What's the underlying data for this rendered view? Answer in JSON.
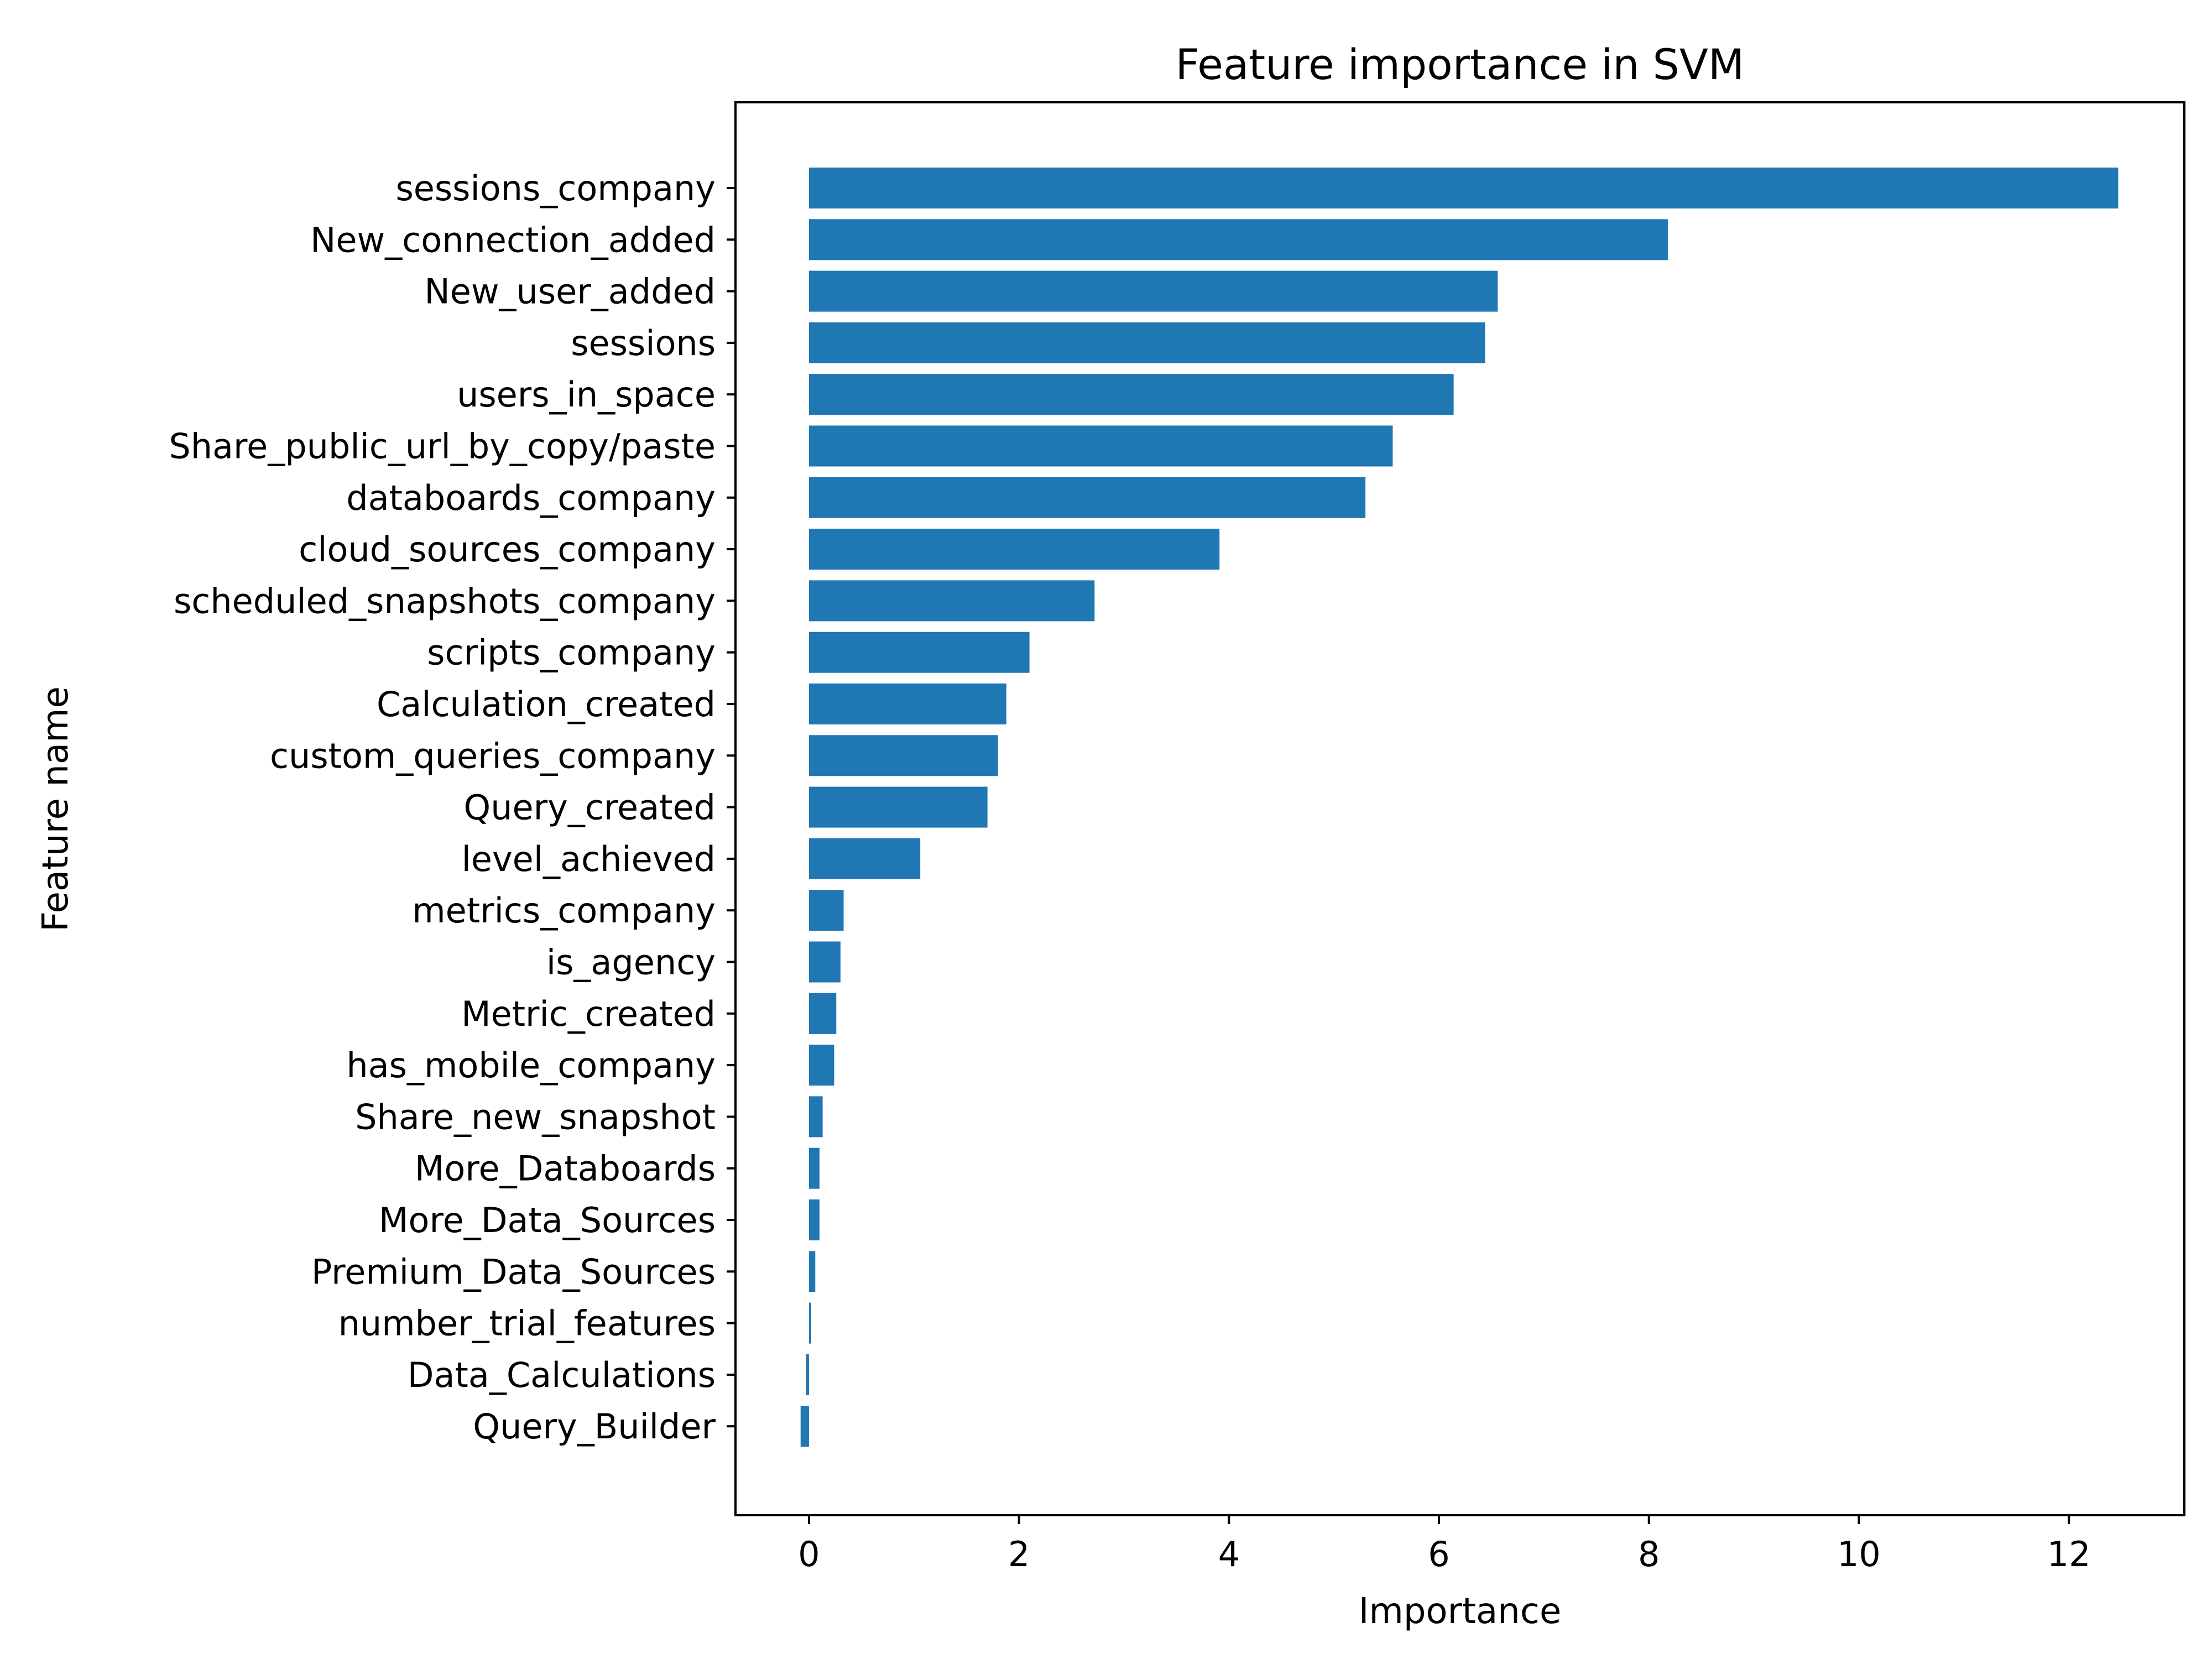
{
  "chart_data": {
    "type": "bar",
    "orientation": "horizontal",
    "title": "Feature importance in SVM",
    "xlabel": "Importance",
    "ylabel": "Feature name",
    "xlim": [
      -0.7,
      13.1
    ],
    "xticks": [
      0,
      2,
      4,
      6,
      8,
      10,
      12
    ],
    "grid": false,
    "bar_color": "#1f77b4",
    "categories": [
      "sessions_company",
      "New_connection_added",
      "New_user_added",
      "sessions",
      "users_in_space",
      "Share_public_url_by_copy/paste",
      "databoards_company",
      "cloud_sources_company",
      "scheduled_snapshots_company",
      "scripts_company",
      "Calculation_created",
      "custom_queries_company",
      "Query_created",
      "level_achieved",
      "metrics_company",
      "is_agency",
      "Metric_created",
      "has_mobile_company",
      "Share_new_snapshot",
      "More_Databoards",
      "More_Data_Sources",
      "Premium_Data_Sources",
      "number_trial_features",
      "Data_Calculations",
      "Query_Builder"
    ],
    "values": [
      12.47,
      8.18,
      6.56,
      6.44,
      6.14,
      5.56,
      5.3,
      3.91,
      2.72,
      2.1,
      1.88,
      1.8,
      1.7,
      1.06,
      0.33,
      0.3,
      0.26,
      0.24,
      0.13,
      0.1,
      0.1,
      0.06,
      0.02,
      -0.03,
      -0.08
    ]
  }
}
